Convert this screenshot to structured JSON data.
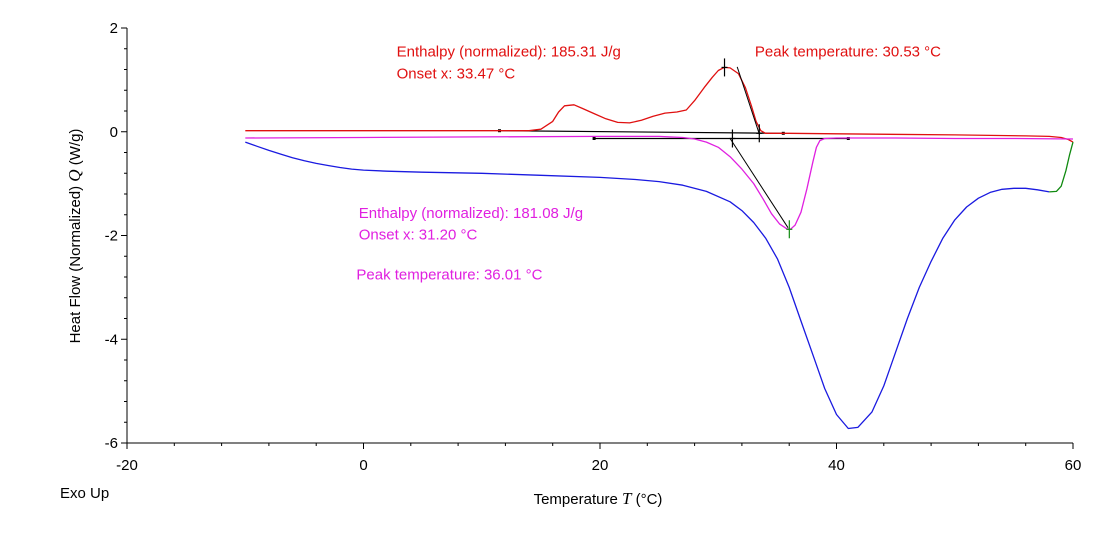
{
  "chart_data": {
    "type": "line",
    "xlabel_prefix": "Temperature ",
    "xlabel_symbol": "T",
    "xlabel_unit": " (°C)",
    "ylabel_prefix": "Heat Flow (Normalized) ",
    "ylabel_symbol": "Q",
    "ylabel_unit": " (W/g)",
    "corner_label": "Exo Up",
    "xlim": [
      -20,
      60
    ],
    "ylim": [
      -6,
      2
    ],
    "x_ticks": [
      -20,
      0,
      20,
      40,
      60
    ],
    "y_ticks": [
      2,
      0,
      -2,
      -4,
      -6
    ],
    "x_tick_labels": [
      "-20",
      "0",
      "20",
      "40",
      "60"
    ],
    "y_tick_labels": [
      "2",
      "0",
      "-2",
      "-4",
      "-6"
    ],
    "colors": {
      "heating_top": "#e01010",
      "cooling_middle": "#e020e0",
      "bottom": "#1a1ae0",
      "end_segment": "#108a10",
      "tangent": "#000000"
    },
    "series": [
      {
        "color": "#e01010",
        "points": [
          [
            -10,
            0.02
          ],
          [
            0,
            0.02
          ],
          [
            10,
            0.02
          ],
          [
            14,
            0.02
          ],
          [
            15,
            0.05
          ],
          [
            16,
            0.2
          ],
          [
            16.5,
            0.38
          ],
          [
            17,
            0.5
          ],
          [
            17.8,
            0.52
          ],
          [
            18.5,
            0.45
          ],
          [
            19.5,
            0.35
          ],
          [
            20.5,
            0.25
          ],
          [
            21.5,
            0.18
          ],
          [
            22.5,
            0.17
          ],
          [
            23.5,
            0.22
          ],
          [
            24.5,
            0.3
          ],
          [
            25.5,
            0.36
          ],
          [
            26.5,
            0.38
          ],
          [
            27.3,
            0.42
          ],
          [
            28,
            0.6
          ],
          [
            28.8,
            0.85
          ],
          [
            29.5,
            1.05
          ],
          [
            30,
            1.18
          ],
          [
            30.5,
            1.24
          ],
          [
            31,
            1.23
          ],
          [
            31.7,
            1.12
          ],
          [
            32.3,
            0.85
          ],
          [
            32.8,
            0.5
          ],
          [
            33.2,
            0.2
          ],
          [
            33.6,
            0.02
          ],
          [
            34,
            -0.03
          ],
          [
            36,
            -0.03
          ],
          [
            40,
            -0.04
          ],
          [
            50,
            -0.06
          ],
          [
            56,
            -0.08
          ],
          [
            58,
            -0.09
          ],
          [
            59,
            -0.11
          ],
          [
            59.6,
            -0.15
          ],
          [
            60,
            -0.2
          ]
        ]
      },
      {
        "color": "#e020e0",
        "points": [
          [
            -10,
            -0.12
          ],
          [
            0,
            -0.11
          ],
          [
            10,
            -0.1
          ],
          [
            20,
            -0.09
          ],
          [
            25,
            -0.09
          ],
          [
            27,
            -0.11
          ],
          [
            28,
            -0.14
          ],
          [
            29,
            -0.2
          ],
          [
            30,
            -0.3
          ],
          [
            31,
            -0.48
          ],
          [
            32,
            -0.72
          ],
          [
            33,
            -1.0
          ],
          [
            33.8,
            -1.3
          ],
          [
            34.5,
            -1.58
          ],
          [
            35.2,
            -1.78
          ],
          [
            35.8,
            -1.87
          ],
          [
            36.1,
            -1.88
          ],
          [
            36.5,
            -1.8
          ],
          [
            37,
            -1.55
          ],
          [
            37.5,
            -1.1
          ],
          [
            38,
            -0.58
          ],
          [
            38.3,
            -0.3
          ],
          [
            38.6,
            -0.17
          ],
          [
            39,
            -0.13
          ],
          [
            40,
            -0.12
          ],
          [
            45,
            -0.12
          ],
          [
            50,
            -0.13
          ],
          [
            55,
            -0.13
          ],
          [
            60,
            -0.14
          ]
        ]
      },
      {
        "color": "#1a1ae0",
        "points": [
          [
            -10,
            -0.2
          ],
          [
            -9,
            -0.28
          ],
          [
            -8,
            -0.36
          ],
          [
            -7,
            -0.43
          ],
          [
            -6,
            -0.5
          ],
          [
            -5,
            -0.56
          ],
          [
            -4,
            -0.61
          ],
          [
            -3,
            -0.65
          ],
          [
            -2,
            -0.69
          ],
          [
            -1,
            -0.72
          ],
          [
            0,
            -0.74
          ],
          [
            2,
            -0.76
          ],
          [
            5,
            -0.78
          ],
          [
            10,
            -0.8
          ],
          [
            15,
            -0.84
          ],
          [
            20,
            -0.88
          ],
          [
            23,
            -0.92
          ],
          [
            25,
            -0.96
          ],
          [
            27,
            -1.03
          ],
          [
            29,
            -1.15
          ],
          [
            31,
            -1.35
          ],
          [
            32,
            -1.52
          ],
          [
            33,
            -1.75
          ],
          [
            34,
            -2.05
          ],
          [
            35,
            -2.45
          ],
          [
            36,
            -3.0
          ],
          [
            37,
            -3.65
          ],
          [
            38,
            -4.3
          ],
          [
            39,
            -4.95
          ],
          [
            40,
            -5.45
          ],
          [
            41,
            -5.72
          ],
          [
            41.8,
            -5.7
          ],
          [
            43,
            -5.4
          ],
          [
            44,
            -4.9
          ],
          [
            45,
            -4.25
          ],
          [
            46,
            -3.6
          ],
          [
            47,
            -3.0
          ],
          [
            48,
            -2.5
          ],
          [
            49,
            -2.05
          ],
          [
            50,
            -1.7
          ],
          [
            51,
            -1.45
          ],
          [
            52,
            -1.28
          ],
          [
            53,
            -1.17
          ],
          [
            54,
            -1.11
          ],
          [
            55,
            -1.09
          ],
          [
            56,
            -1.09
          ],
          [
            57,
            -1.12
          ],
          [
            58,
            -1.16
          ]
        ]
      },
      {
        "color": "#108a10",
        "points": [
          [
            58,
            -1.16
          ],
          [
            58.6,
            -1.15
          ],
          [
            59,
            -1.05
          ],
          [
            59.4,
            -0.75
          ],
          [
            59.7,
            -0.45
          ],
          [
            60,
            -0.2
          ]
        ]
      }
    ],
    "baselines": [
      {
        "color": "#000000",
        "points": [
          [
            11.5,
            0.02
          ],
          [
            35.5,
            -0.03
          ]
        ]
      },
      {
        "color": "#000000",
        "points": [
          [
            19.5,
            -0.13
          ],
          [
            41,
            -0.13
          ]
        ]
      }
    ],
    "tangent_lines": [
      {
        "color": "#000000",
        "points": [
          [
            31.6,
            1.25
          ],
          [
            33.5,
            -0.06
          ]
        ]
      },
      {
        "color": "#000000",
        "points": [
          [
            31.0,
            -0.13
          ],
          [
            35.9,
            -1.85
          ]
        ]
      }
    ],
    "markers": [
      {
        "color": "#000000",
        "x": 30.53,
        "y": 1.24
      },
      {
        "color": "#000000",
        "x": 33.47,
        "y": -0.03
      },
      {
        "color": "#108a10",
        "x": 36.01,
        "y": -1.88
      },
      {
        "color": "#000000",
        "x": 31.2,
        "y": -0.13
      }
    ],
    "annotations": [
      {
        "text": "Enthalpy (normalized): 185.31 J/g",
        "color": "#e01010",
        "x": 2.8,
        "y": 1.45
      },
      {
        "text": "Onset x: 33.47 °C",
        "color": "#e01010",
        "x": 2.8,
        "y": 1.03
      },
      {
        "text": "Peak temperature: 30.53 °C",
        "color": "#e01010",
        "x": 33.1,
        "y": 1.45
      },
      {
        "text": "Enthalpy (normalized): 181.08 J/g",
        "color": "#e020e0",
        "x": -0.4,
        "y": -1.66
      },
      {
        "text": "Onset x: 31.20 °C",
        "color": "#e020e0",
        "x": -0.4,
        "y": -2.08
      },
      {
        "text": "Peak temperature: 36.01 °C",
        "color": "#e020e0",
        "x": -0.6,
        "y": -2.85
      }
    ]
  }
}
